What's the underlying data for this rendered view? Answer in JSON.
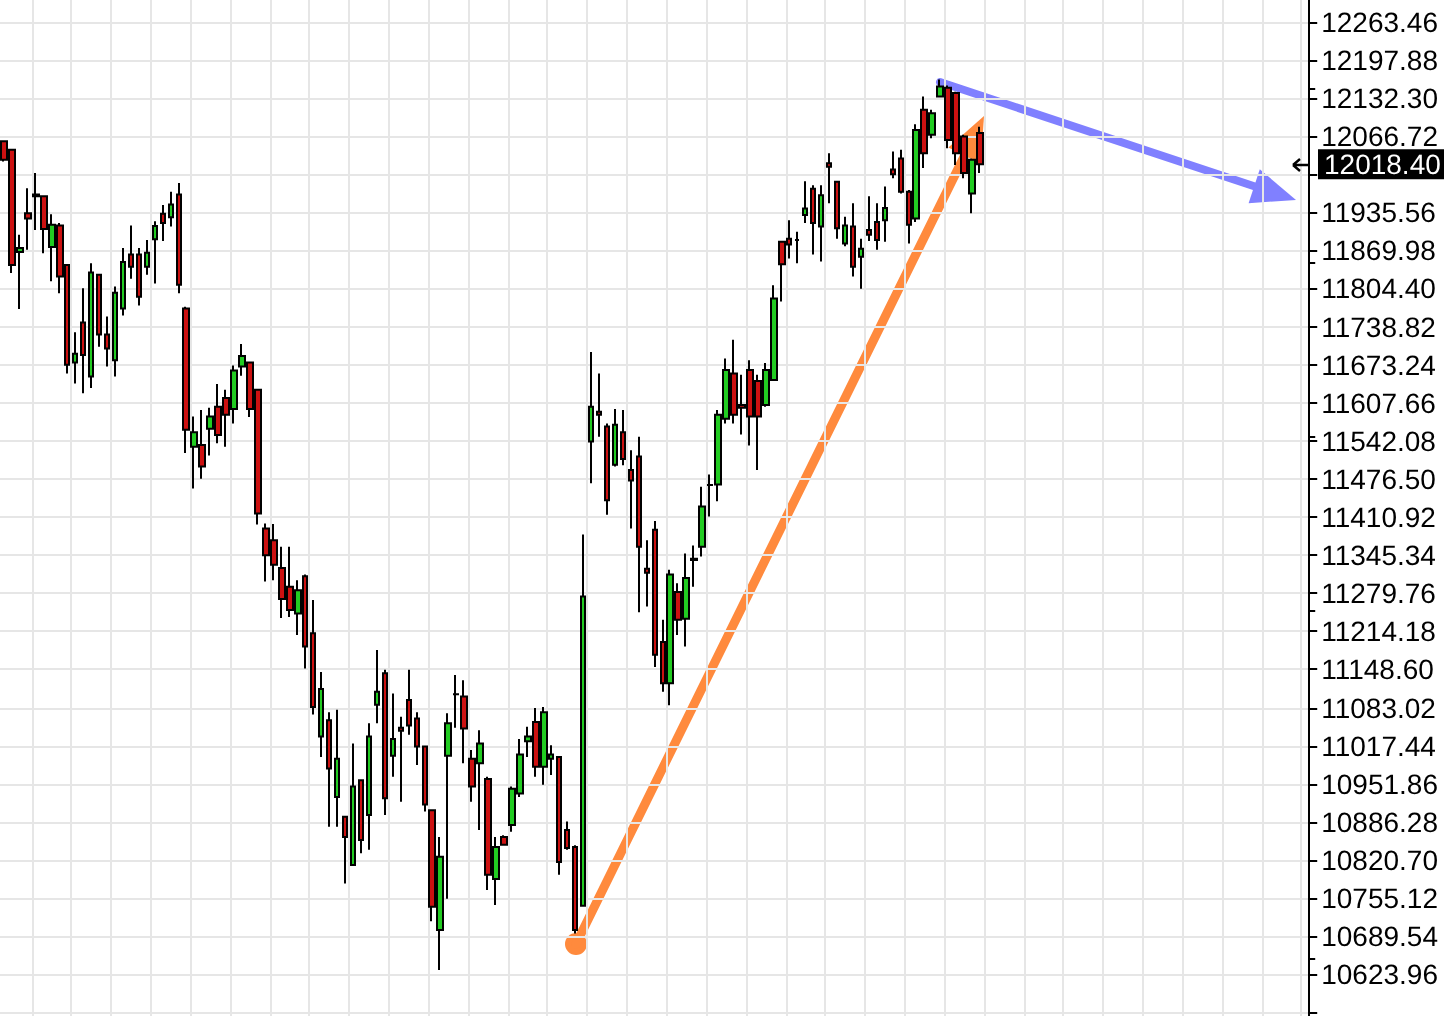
{
  "chart_data": {
    "type": "candlestick",
    "grid": true,
    "tick_labels": "y",
    "colors": [
      "#cc1111",
      "#cc1111",
      "#22cc22",
      "#cc1111",
      "#cc1111",
      "#cc1111",
      "#22cc22",
      "#cc1111",
      "#cc1111",
      "#22cc22",
      "#cc1111",
      "#22cc22",
      "#cc1111",
      "#cc1111",
      "#22cc22",
      "#22cc22",
      "#cc1111",
      "#cc1111",
      "#22cc22",
      "#22cc22",
      "#cc1111",
      "#22cc22",
      "#cc1111",
      "#cc1111",
      "#22cc22",
      "#cc1111",
      "#22cc22",
      "#cc1111",
      "#cc1111",
      "#22cc22",
      "#22cc22",
      "#cc1111",
      "#cc1111",
      "#cc1111",
      "#cc1111",
      "#cc1111",
      "#cc1111",
      "#22cc22",
      "#cc1111",
      "#cc1111",
      "#22cc22",
      "#cc1111",
      "#22cc22",
      "#cc1111",
      "#22cc22",
      "#cc1111",
      "#22cc22",
      "#22cc22",
      "#cc1111",
      "#22cc22",
      "#cc1111",
      "#cc1111",
      "#cc1111",
      "#cc1111",
      "#cc1111",
      "#22cc22",
      "#22cc22",
      "#000000",
      "#cc1111",
      "#cc1111",
      "#22cc22",
      "#cc1111",
      "#22cc22",
      "#cc1111",
      "#22cc22",
      "#22cc22",
      "#22cc22",
      "#cc1111",
      "#22cc22",
      "#22cc22",
      "#cc1111",
      "#cc1111",
      "#cc1111",
      "#22cc22",
      "#22cc22",
      "#cc1111",
      "#cc1111",
      "#22cc22",
      "#cc1111",
      "#cc1111",
      "#cc1111",
      "#cc1111",
      "#cc1111",
      "#cc1111",
      "#22cc22",
      "#cc1111",
      "#22cc22",
      "#cc1111",
      "#22cc22",
      "#000000",
      "#22cc22",
      "#22cc22",
      "#cc1111",
      "#cc1111",
      "#cc1111",
      "#cc1111",
      "#22cc22",
      "#22cc22",
      "#cc1111",
      "#cc1111",
      "#000000",
      "#22cc22",
      "#cc1111",
      "#22cc22",
      "#cc1111",
      "#cc1111",
      "#22cc22",
      "#cc1111",
      "#22cc22",
      "#cc1111",
      "#cc1111",
      "#22cc22",
      "#cc1111",
      "#cc1111",
      "#cc1111",
      "#22cc22",
      "#cc1111",
      "#22cc22",
      "#22cc22",
      "#cc1111",
      "#cc1111",
      "#cc1111",
      "#22cc22",
      "#cc1111",
      null,
      null,
      null,
      null,
      null,
      null,
      null,
      null,
      null,
      null,
      null,
      null,
      null,
      null,
      null,
      null,
      null,
      null,
      null,
      null,
      null,
      null,
      null,
      null,
      null,
      null,
      null,
      null,
      null,
      null,
      null,
      null,
      null,
      null,
      null,
      null,
      null,
      null,
      null,
      null,
      null
    ],
    "ylim": [
      10552,
      12301
    ],
    "yticks": [
      {
        "value": 10558.38,
        "label": null
      },
      {
        "value": 10623.96,
        "label": "10623.96"
      },
      {
        "value": 10689.54,
        "label": "10689.54"
      },
      {
        "value": 10755.12,
        "label": "10755.12"
      },
      {
        "value": 10820.7,
        "label": "10820.70"
      },
      {
        "value": 10886.28,
        "label": "10886.28"
      },
      {
        "value": 10951.86,
        "label": "10951.86"
      },
      {
        "value": 11017.44,
        "label": "11017.44"
      },
      {
        "value": 11083.02,
        "label": "11083.02"
      },
      {
        "value": 11148.6,
        "label": "11148.60"
      },
      {
        "value": 11214.18,
        "label": "11214.18"
      },
      {
        "value": 11279.76,
        "label": "11279.76"
      },
      {
        "value": 11345.34,
        "label": "11345.34"
      },
      {
        "value": 11410.92,
        "label": "11410.92"
      },
      {
        "value": 11476.5,
        "label": "11476.50"
      },
      {
        "value": 11542.08,
        "label": "11542.08"
      },
      {
        "value": 11607.66,
        "label": "11607.66"
      },
      {
        "value": 11673.24,
        "label": "11673.24"
      },
      {
        "value": 11738.82,
        "label": "11738.82"
      },
      {
        "value": 11804.4,
        "label": "11804.40"
      },
      {
        "value": 11869.98,
        "label": "11869.98"
      },
      {
        "value": 11935.56,
        "label": "11935.56"
      },
      {
        "value": 12001.14,
        "label": null
      },
      {
        "value": 12066.72,
        "label": "12066.72"
      },
      {
        "value": 12132.3,
        "label": "12132.30"
      },
      {
        "value": 12197.88,
        "label": "12197.88"
      },
      {
        "value": 12263.46,
        "label": "12263.46"
      }
    ],
    "annotations": [
      "12018.40"
    ],
    "categories": [
      null,
      null,
      null,
      null,
      null,
      null,
      null,
      null,
      null,
      null,
      null,
      null,
      null,
      null,
      null,
      null,
      null,
      null,
      null,
      null,
      null,
      null,
      null,
      null,
      null,
      null,
      null,
      null,
      null,
      null,
      null,
      null,
      null,
      null,
      null,
      null,
      null,
      null,
      null,
      null,
      null,
      null,
      null,
      null,
      null,
      null,
      null,
      null,
      null,
      null,
      null,
      null,
      null,
      null,
      null,
      null,
      null,
      null,
      null,
      null,
      null,
      null,
      null,
      null,
      null,
      null,
      null,
      null,
      null,
      null,
      null,
      null,
      null,
      null,
      null,
      null,
      null,
      null,
      null,
      null,
      null,
      null,
      null,
      null,
      null,
      null,
      null,
      null,
      null,
      null,
      null,
      null,
      null,
      null,
      null,
      null,
      null,
      null,
      null,
      null,
      null,
      null,
      null,
      null,
      null,
      null,
      null,
      null,
      null,
      null,
      null,
      null,
      null,
      null,
      null,
      null,
      null,
      null,
      null,
      null,
      null,
      null,
      null,
      null,
      null,
      null,
      null,
      null,
      null,
      null,
      null,
      null,
      null,
      null,
      null,
      null,
      null,
      null,
      null,
      null,
      null,
      null,
      null,
      null,
      null,
      null,
      null,
      null,
      null,
      null,
      null,
      null,
      null,
      null,
      null,
      null,
      null,
      null,
      null,
      null,
      null,
      null,
      null,
      null,
      null
    ],
    "ohlc": [
      [
        12058,
        12058,
        12023,
        12026
      ],
      [
        12043,
        12043,
        11831,
        11845
      ],
      [
        11867,
        11897,
        11769,
        11874
      ],
      [
        11934,
        11977,
        11871,
        11925
      ],
      [
        11966,
        12003,
        11905,
        11963
      ],
      [
        11963,
        11963,
        11865,
        11907
      ],
      [
        11876,
        11932,
        11817,
        11914
      ],
      [
        11913,
        11917,
        11796,
        11825
      ],
      [
        11845,
        11845,
        11658,
        11673
      ],
      [
        11677,
        11729,
        11641,
        11692
      ],
      [
        11746,
        11805,
        11624,
        11690
      ],
      [
        11653,
        11848,
        11633,
        11832
      ],
      [
        11828,
        11828,
        11704,
        11725
      ],
      [
        11725,
        11756,
        11670,
        11701
      ],
      [
        11681,
        11808,
        11653,
        11797
      ],
      [
        11770,
        11874,
        11758,
        11850
      ],
      [
        11863,
        11913,
        11821,
        11842
      ],
      [
        11863,
        11874,
        11775,
        11790
      ],
      [
        11842,
        11888,
        11828,
        11866
      ],
      [
        11889,
        11920,
        11813,
        11912
      ],
      [
        11933,
        11948,
        11886,
        11917
      ],
      [
        11927,
        11971,
        11911,
        11949
      ],
      [
        11966,
        11986,
        11796,
        11811
      ],
      [
        11770,
        11773,
        11521,
        11561
      ],
      [
        11532,
        11584,
        11460,
        11557
      ],
      [
        11535,
        11595,
        11477,
        11498
      ],
      [
        11563,
        11599,
        11517,
        11584
      ],
      [
        11601,
        11640,
        11538,
        11552
      ],
      [
        11616,
        11630,
        11532,
        11587
      ],
      [
        11597,
        11672,
        11572,
        11663
      ],
      [
        11670,
        11709,
        11654,
        11688
      ],
      [
        11677,
        11677,
        11583,
        11597
      ],
      [
        11630,
        11630,
        11398,
        11417
      ],
      [
        11391,
        11400,
        11300,
        11345
      ],
      [
        11371,
        11399,
        11302,
        11329
      ],
      [
        11323,
        11360,
        11237,
        11270
      ],
      [
        11291,
        11360,
        11239,
        11251
      ],
      [
        11245,
        11302,
        11208,
        11285
      ],
      [
        11309,
        11312,
        11150,
        11188
      ],
      [
        11211,
        11268,
        11071,
        11084
      ],
      [
        11033,
        11144,
        10998,
        11115
      ],
      [
        11061,
        11075,
        10878,
        10978
      ],
      [
        10929,
        11079,
        10878,
        10995
      ],
      [
        10895,
        10895,
        10780,
        10860
      ],
      [
        10812,
        11021,
        10812,
        10947
      ],
      [
        10958,
        10958,
        10832,
        10855
      ],
      [
        10898,
        11056,
        10838,
        11033
      ],
      [
        11088,
        11182,
        11056,
        11110
      ],
      [
        11142,
        11148,
        10898,
        10927
      ],
      [
        11000,
        11107,
        10964,
        11029
      ],
      [
        11048,
        11067,
        10921,
        11043
      ],
      [
        11096,
        11148,
        11036,
        11052
      ],
      [
        11064,
        11075,
        10984,
        11016
      ],
      [
        11016,
        11016,
        10904,
        10916
      ],
      [
        10906,
        10906,
        10715,
        10740
      ],
      [
        10700,
        10860,
        10631,
        10826
      ],
      [
        11000,
        11073,
        10754,
        11056
      ],
      [
        11106,
        11139,
        11048,
        11106
      ],
      [
        11102,
        11130,
        10987,
        11047
      ],
      [
        10995,
        11010,
        10921,
        10947
      ],
      [
        10987,
        11044,
        10872,
        11021
      ],
      [
        10960,
        10964,
        10769,
        10795
      ],
      [
        10788,
        10860,
        10743,
        10843
      ],
      [
        10860,
        10863,
        10845,
        10847
      ],
      [
        10881,
        10947,
        10869,
        10943
      ],
      [
        10935,
        11029,
        10929,
        11002
      ],
      [
        11025,
        11050,
        10998,
        11033
      ],
      [
        11058,
        11082,
        10964,
        10981
      ],
      [
        10981,
        11084,
        10950,
        11075
      ],
      [
        10995,
        11018,
        10967,
        11002
      ],
      [
        10998,
        10998,
        10795,
        10817
      ],
      [
        10872,
        10887,
        10838,
        10841
      ],
      [
        10843,
        10846,
        10694,
        10700
      ],
      [
        10742,
        11381,
        10742,
        11274
      ],
      [
        11541,
        11695,
        11469,
        11601
      ],
      [
        11592,
        11658,
        11549,
        11587
      ],
      [
        11567,
        11572,
        11415,
        11440
      ],
      [
        11501,
        11597,
        11498,
        11570
      ],
      [
        11557,
        11595,
        11500,
        11511
      ],
      [
        11492,
        11526,
        11391,
        11474
      ],
      [
        11515,
        11549,
        11247,
        11360
      ],
      [
        11322,
        11371,
        11257,
        11315
      ],
      [
        11389,
        11404,
        11153,
        11174
      ],
      [
        11196,
        11234,
        11110,
        11125
      ],
      [
        11125,
        11320,
        11087,
        11312
      ],
      [
        11282,
        11297,
        11208,
        11234
      ],
      [
        11236,
        11348,
        11188,
        11306
      ],
      [
        11339,
        11362,
        11291,
        11337
      ],
      [
        11360,
        11463,
        11343,
        11429
      ],
      [
        11466,
        11484,
        11412,
        11466
      ],
      [
        11467,
        11595,
        11438,
        11587
      ],
      [
        11580,
        11684,
        11572,
        11664
      ],
      [
        11658,
        11716,
        11572,
        11587
      ],
      [
        11604,
        11656,
        11553,
        11599
      ],
      [
        11664,
        11681,
        11534,
        11584
      ],
      [
        11645,
        11656,
        11492,
        11584
      ],
      [
        11604,
        11676,
        11601,
        11664
      ],
      [
        11647,
        11810,
        11647,
        11787
      ],
      [
        11885,
        11886,
        11782,
        11846
      ],
      [
        11890,
        11922,
        11856,
        11880
      ],
      [
        11888,
        11902,
        11848,
        11888
      ],
      [
        11931,
        11989,
        11917,
        11942
      ],
      [
        11976,
        11982,
        11863,
        11917
      ],
      [
        11911,
        11982,
        11851,
        11965
      ],
      [
        12020,
        12037,
        11951,
        12014
      ],
      [
        11988,
        11988,
        11890,
        11908
      ],
      [
        11882,
        11928,
        11877,
        11913
      ],
      [
        11911,
        11951,
        11825,
        11842
      ],
      [
        11859,
        11890,
        11804,
        11873
      ],
      [
        11905,
        11963,
        11886,
        11897
      ],
      [
        11919,
        11951,
        11871,
        11888
      ],
      [
        11922,
        11980,
        11885,
        11943
      ],
      [
        12009,
        12040,
        11994,
        12001
      ],
      [
        12028,
        12043,
        11968,
        11971
      ],
      [
        11971,
        11974,
        11882,
        11914
      ],
      [
        11925,
        12087,
        11919,
        12077
      ],
      [
        12112,
        12135,
        12012,
        12037
      ],
      [
        12069,
        12112,
        12063,
        12106
      ],
      [
        12135,
        12164,
        12135,
        12152
      ],
      [
        12150,
        12154,
        12046,
        12060
      ],
      [
        12141,
        12143,
        12017,
        12037
      ],
      [
        12066,
        12069,
        11994,
        12003
      ],
      [
        11968,
        12028,
        11934,
        12026
      ],
      [
        12072,
        12083,
        12003,
        12018.4
      ],
      null,
      null,
      null,
      null,
      null,
      null,
      null,
      null,
      null,
      null,
      null,
      null,
      null,
      null,
      null,
      null,
      null,
      null,
      null,
      null,
      null,
      null,
      null,
      null,
      null,
      null,
      null,
      null,
      null,
      null,
      null,
      null,
      null,
      null,
      null,
      null,
      null,
      null,
      null,
      null,
      null
    ]
  }
}
